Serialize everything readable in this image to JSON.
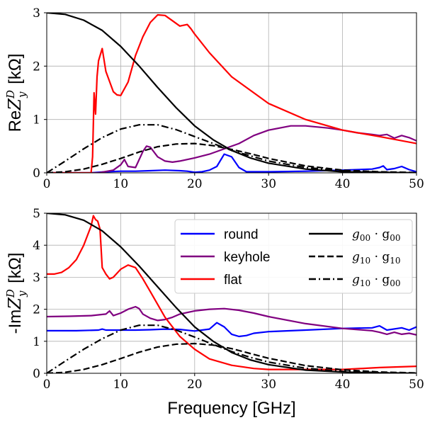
{
  "chart_data": [
    {
      "type": "line",
      "ylabel_prefix": "Re",
      "ylabel_suffix": " [kΩ]",
      "xlabel": "",
      "xlim": [
        0,
        50
      ],
      "ylim": [
        0,
        3
      ],
      "xticks": [
        0,
        10,
        20,
        30,
        40,
        50
      ],
      "yticks": [
        0,
        1,
        2,
        3
      ],
      "grid": true,
      "series": [
        {
          "name": "round",
          "color": "#0000ff",
          "dash": "solid",
          "x": [
            0,
            6,
            8,
            10,
            12,
            14,
            16,
            18,
            19,
            20,
            21,
            22,
            23,
            24,
            25,
            26,
            27,
            30,
            35,
            40,
            44,
            45,
            45.5,
            46,
            47,
            48,
            49,
            50
          ],
          "y": [
            0,
            0,
            0.02,
            0.03,
            0.03,
            0.04,
            0.05,
            0.04,
            0.03,
            0.01,
            0.02,
            0.05,
            0.12,
            0.35,
            0.3,
            0.1,
            0.02,
            0.02,
            0.03,
            0.05,
            0.07,
            0.1,
            0.13,
            0.06,
            0.08,
            0.12,
            0.06,
            0.02
          ]
        },
        {
          "name": "keyhole",
          "color": "#800080",
          "dash": "solid",
          "x": [
            0,
            7,
            9,
            10,
            10.5,
            11,
            12,
            13,
            13.5,
            14,
            15,
            16,
            17,
            18,
            20,
            22,
            24,
            26,
            28,
            30,
            33,
            35,
            38,
            40,
            42,
            44,
            45,
            46,
            47,
            48,
            49,
            50
          ],
          "y": [
            0,
            0,
            0.05,
            0.15,
            0.25,
            0.12,
            0.1,
            0.4,
            0.5,
            0.48,
            0.3,
            0.22,
            0.2,
            0.22,
            0.28,
            0.35,
            0.45,
            0.55,
            0.7,
            0.8,
            0.88,
            0.88,
            0.84,
            0.8,
            0.75,
            0.72,
            0.7,
            0.72,
            0.65,
            0.7,
            0.66,
            0.6
          ]
        },
        {
          "name": "flat",
          "color": "#ff0000",
          "dash": "solid",
          "x": [
            0,
            6,
            6.2,
            6.4,
            6.6,
            6.8,
            7,
            7.5,
            8,
            9,
            9.5,
            10,
            11,
            12,
            13,
            14,
            15,
            16,
            17,
            18,
            19,
            19.5,
            20,
            22,
            25,
            30,
            35,
            40,
            45,
            50
          ],
          "y": [
            0,
            0,
            0.3,
            1.5,
            1.1,
            1.8,
            2.1,
            2.33,
            1.9,
            1.52,
            1.46,
            1.45,
            1.7,
            2.2,
            2.55,
            2.82,
            2.96,
            2.95,
            2.85,
            2.75,
            2.78,
            2.7,
            2.6,
            2.25,
            1.8,
            1.3,
            1.0,
            0.8,
            0.68,
            0.55
          ]
        },
        {
          "name": "g00 · g00",
          "color": "#000000",
          "dash": "solid",
          "x": [
            0,
            2.5,
            5,
            7.5,
            10,
            12.5,
            15,
            17.5,
            20,
            22.5,
            25,
            27.5,
            30,
            35,
            40,
            45,
            50
          ],
          "y": [
            3,
            2.97,
            2.86,
            2.67,
            2.37,
            2.0,
            1.6,
            1.22,
            0.88,
            0.62,
            0.42,
            0.28,
            0.18,
            0.07,
            0.02,
            0.01,
            0
          ]
        },
        {
          "name": "g10 · g10",
          "color": "#000000",
          "dash": "dashed",
          "x": [
            0,
            2.5,
            5,
            7.5,
            10,
            12.5,
            15,
            17.5,
            20,
            22.5,
            25,
            27.5,
            30,
            35,
            40,
            45,
            50
          ],
          "y": [
            0,
            0.02,
            0.07,
            0.16,
            0.27,
            0.39,
            0.49,
            0.54,
            0.55,
            0.51,
            0.44,
            0.36,
            0.27,
            0.13,
            0.05,
            0.02,
            0.005
          ]
        },
        {
          "name": "g10 · g00",
          "color": "#000000",
          "dash": "dashdot",
          "x": [
            0,
            2.5,
            5,
            7.5,
            10,
            12.5,
            15,
            17.5,
            20,
            22.5,
            25,
            27.5,
            30,
            35,
            40,
            45,
            50
          ],
          "y": [
            0,
            0.22,
            0.45,
            0.66,
            0.82,
            0.9,
            0.9,
            0.81,
            0.68,
            0.55,
            0.42,
            0.32,
            0.22,
            0.1,
            0.04,
            0.01,
            0
          ]
        }
      ]
    },
    {
      "type": "line",
      "ylabel_prefix": "-Im",
      "ylabel_suffix": " [kΩ]",
      "xlabel": "Frequency [GHz]",
      "xlim": [
        0,
        50
      ],
      "ylim": [
        0,
        5
      ],
      "xticks": [
        0,
        10,
        20,
        30,
        40,
        50
      ],
      "yticks": [
        0,
        1,
        2,
        3,
        4,
        5
      ],
      "grid": true,
      "legend": "upper right",
      "series": [
        {
          "name": "round",
          "color": "#0000ff",
          "dash": "solid",
          "x": [
            0,
            4,
            7,
            7.5,
            8,
            10,
            12,
            14,
            16,
            18,
            20,
            22,
            23,
            24,
            25,
            26,
            27,
            28,
            30,
            35,
            40,
            44,
            45,
            46,
            48,
            49,
            50
          ],
          "y": [
            1.33,
            1.33,
            1.35,
            1.38,
            1.35,
            1.35,
            1.35,
            1.36,
            1.38,
            1.37,
            1.32,
            1.38,
            1.58,
            1.45,
            1.22,
            1.15,
            1.18,
            1.25,
            1.3,
            1.35,
            1.4,
            1.42,
            1.48,
            1.35,
            1.42,
            1.35,
            1.45
          ]
        },
        {
          "name": "keyhole",
          "color": "#800080",
          "dash": "solid",
          "x": [
            0,
            3,
            6,
            8,
            8.5,
            9,
            10,
            11,
            12,
            12.5,
            13,
            14,
            15,
            16,
            17,
            18,
            20,
            22,
            24,
            26,
            28,
            30,
            35,
            40,
            44,
            45,
            46,
            47,
            48,
            49,
            50
          ],
          "y": [
            1.77,
            1.78,
            1.8,
            1.85,
            1.95,
            1.8,
            1.88,
            2.0,
            2.08,
            2.02,
            1.85,
            1.72,
            1.65,
            1.68,
            1.75,
            1.85,
            1.95,
            2.0,
            2.02,
            1.97,
            1.88,
            1.77,
            1.55,
            1.4,
            1.33,
            1.28,
            1.22,
            1.28,
            1.22,
            1.25,
            1.2
          ]
        },
        {
          "name": "flat",
          "color": "#ff0000",
          "dash": "solid",
          "x": [
            0,
            1,
            2,
            3,
            4,
            5,
            5.5,
            6,
            6.3,
            6.6,
            6.9,
            7.2,
            7.5,
            8,
            8.5,
            9,
            10,
            11,
            12,
            13,
            14,
            15,
            16,
            18,
            20,
            22,
            25,
            28,
            30,
            35,
            40,
            45,
            50
          ],
          "y": [
            3.1,
            3.1,
            3.15,
            3.3,
            3.55,
            4.0,
            4.3,
            4.6,
            4.92,
            4.8,
            4.75,
            4.5,
            3.3,
            3.1,
            2.95,
            3.0,
            3.25,
            3.38,
            3.3,
            2.95,
            2.55,
            2.15,
            1.75,
            1.15,
            0.75,
            0.45,
            0.25,
            0.15,
            0.12,
            0.12,
            0.12,
            0.18,
            0.22
          ]
        },
        {
          "name": "g00 · g00",
          "color": "#000000",
          "dash": "solid",
          "x": [
            0,
            2.5,
            5,
            7.5,
            10,
            12.5,
            15,
            17.5,
            20,
            22.5,
            25,
            27.5,
            30,
            35,
            40,
            45,
            50
          ],
          "y": [
            5,
            4.95,
            4.78,
            4.45,
            3.95,
            3.35,
            2.7,
            2.05,
            1.45,
            1.0,
            0.65,
            0.42,
            0.27,
            0.1,
            0.04,
            0.01,
            0
          ]
        },
        {
          "name": "g10 · g10",
          "color": "#000000",
          "dash": "dashed",
          "x": [
            0,
            2.5,
            5,
            7.5,
            10,
            12.5,
            15,
            17.5,
            20,
            22.5,
            25,
            27.5,
            30,
            35,
            40,
            45,
            50
          ],
          "y": [
            0,
            0.03,
            0.12,
            0.27,
            0.46,
            0.66,
            0.82,
            0.91,
            0.93,
            0.88,
            0.77,
            0.62,
            0.47,
            0.24,
            0.11,
            0.04,
            0.01
          ]
        },
        {
          "name": "g10 · g00",
          "color": "#000000",
          "dash": "dashdot",
          "x": [
            0,
            2.5,
            5,
            7.5,
            10,
            12.5,
            15,
            17.5,
            20,
            22.5,
            25,
            27.5,
            30,
            35,
            40,
            45,
            50
          ],
          "y": [
            0,
            0.38,
            0.75,
            1.08,
            1.35,
            1.5,
            1.5,
            1.35,
            1.13,
            0.9,
            0.68,
            0.5,
            0.35,
            0.16,
            0.06,
            0.02,
            0
          ]
        }
      ]
    }
  ],
  "legend": {
    "items": [
      {
        "label": "round",
        "color": "#0000ff",
        "dash": "solid",
        "math": false
      },
      {
        "label": "keyhole",
        "color": "#800080",
        "dash": "solid",
        "math": false
      },
      {
        "label": "flat",
        "color": "#ff0000",
        "dash": "solid",
        "math": false
      },
      {
        "label": "g00 · g00",
        "color": "#000000",
        "dash": "solid",
        "math": true,
        "sub1": "00",
        "sub2": "00"
      },
      {
        "label": "g10 · g10",
        "color": "#000000",
        "dash": "dashed",
        "math": true,
        "sub1": "10",
        "sub2": "10"
      },
      {
        "label": "g10 · g00",
        "color": "#000000",
        "dash": "dashdot",
        "math": true,
        "sub1": "10",
        "sub2": "00"
      }
    ]
  }
}
